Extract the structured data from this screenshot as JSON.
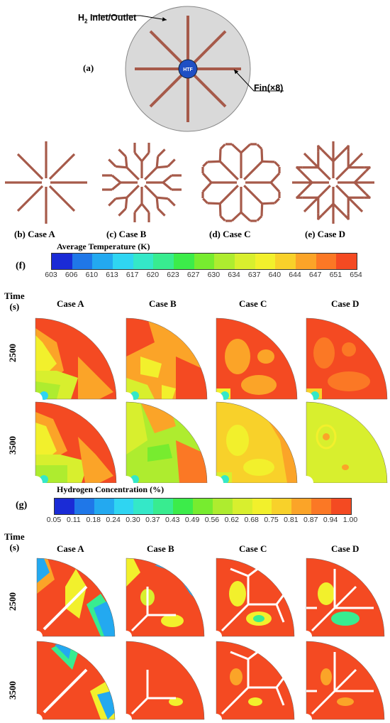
{
  "panel_a": {
    "label": "(a)",
    "inlet_label": "H",
    "inlet_sub": "2",
    "inlet_rest": " Inlet/Outlet",
    "htf_label": "HTF",
    "fin_label": "Fin(×8)"
  },
  "cases": [
    {
      "label": "(b) Case A"
    },
    {
      "label": "(c) Case B"
    },
    {
      "label": "(d) Case C"
    },
    {
      "label": "(e) Case D"
    }
  ],
  "panel_f": {
    "label": "(f)",
    "legend_title": "Average Temperature (K)",
    "ticks": [
      "603",
      "606",
      "610",
      "613",
      "617",
      "620",
      "623",
      "627",
      "630",
      "634",
      "637",
      "640",
      "644",
      "647",
      "651",
      "654"
    ],
    "colors": [
      "#1a2bd6",
      "#1f77e8",
      "#23a9f0",
      "#2fd5f2",
      "#34e8c8",
      "#38ec90",
      "#3cec4a",
      "#77ec2f",
      "#aeec2f",
      "#d8ef2e",
      "#f2f02c",
      "#f8d12a",
      "#fba428",
      "#fb7825",
      "#f44a22"
    ],
    "time_header": "Time",
    "time_unit": "(s)",
    "col_headers": [
      "Case A",
      "Case B",
      "Case C",
      "Case D"
    ],
    "rows": [
      "2500",
      "3500"
    ]
  },
  "panel_g": {
    "label": "(g)",
    "legend_title": "Hydrogen Concentration (%)",
    "ticks": [
      "0.05",
      "0.11",
      "0.18",
      "0.24",
      "0.30",
      "0.37",
      "0.43",
      "0.49",
      "0.56",
      "0.62",
      "0.68",
      "0.75",
      "0.81",
      "0.87",
      "0.94",
      "1.00"
    ],
    "colors": [
      "#1a2bd6",
      "#1f77e8",
      "#23a9f0",
      "#2fd5f2",
      "#34e8c8",
      "#38ec90",
      "#3cec4a",
      "#77ec2f",
      "#aeec2f",
      "#d8ef2e",
      "#f2f02c",
      "#f8d12a",
      "#fba428",
      "#fb7825",
      "#f44a22"
    ],
    "time_header": "Time",
    "time_unit": "(s)",
    "col_headers": [
      "Case A",
      "Case B",
      "Case C",
      "Case D"
    ],
    "rows": [
      "2500",
      "3500"
    ]
  }
}
